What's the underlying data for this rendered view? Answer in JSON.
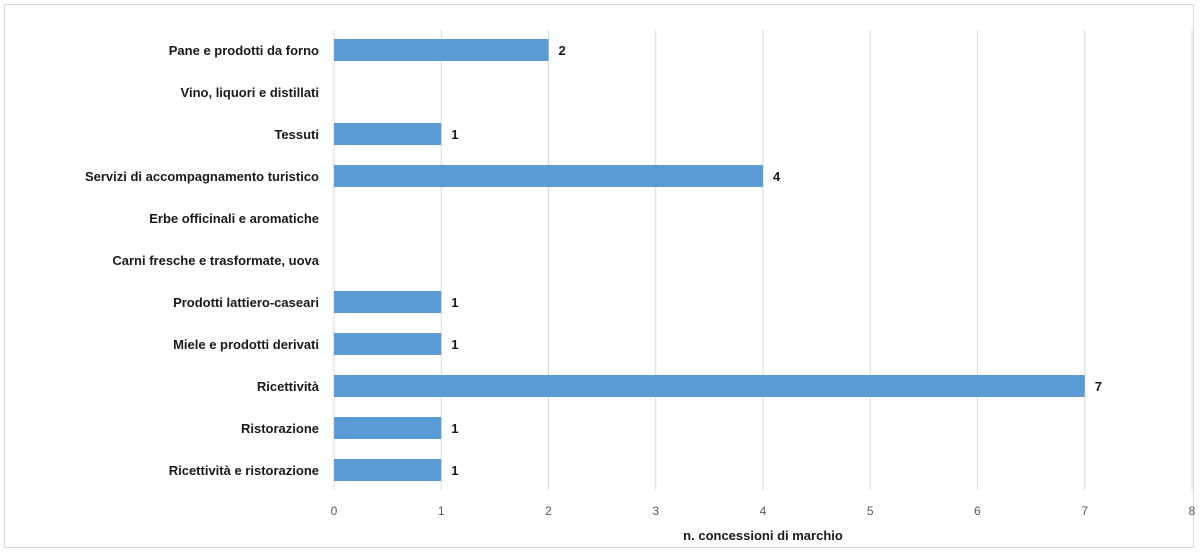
{
  "chart_data": {
    "type": "bar",
    "orientation": "horizontal",
    "title": "",
    "xlabel": "n. concessioni di marchio",
    "ylabel": "",
    "xlim": [
      0,
      8
    ],
    "x_ticks": [
      "0",
      "1",
      "2",
      "3",
      "4",
      "5",
      "6",
      "7",
      "8"
    ],
    "grid": "vertical",
    "bar_color": "#5b9bd5",
    "categories": [
      "Pane e prodotti da forno",
      "Vino, liquori e distillati",
      "Tessuti",
      "Servizi di accompagnamento turistico",
      "Erbe officinali e aromatiche",
      "Carni fresche e trasformate, uova",
      "Prodotti lattiero-caseari",
      "Miele e prodotti derivati",
      "Ricettività",
      "Ristorazione",
      "Ricettività e ristorazione"
    ],
    "values": [
      2,
      null,
      1,
      4,
      null,
      null,
      1,
      1,
      7,
      1,
      1
    ],
    "data_labels": [
      "2",
      "",
      "1",
      "4",
      "",
      "",
      "1",
      "1",
      "7",
      "1",
      "1"
    ]
  }
}
